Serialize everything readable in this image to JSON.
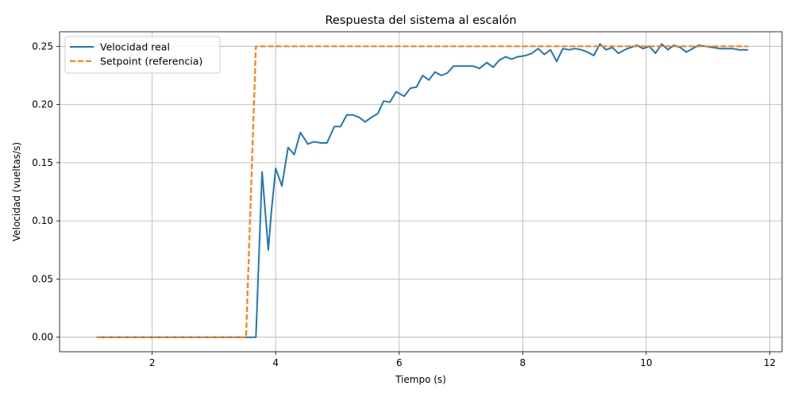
{
  "chart_data": {
    "type": "line",
    "title": "Respuesta del sistema al escalón",
    "xlabel": "Tiempo (s)",
    "ylabel": "Velocidad (vueltas/s)",
    "xlim": [
      0.5,
      12.2
    ],
    "ylim": [
      -0.0125,
      0.2625
    ],
    "x_ticks": [
      2,
      4,
      6,
      8,
      10,
      12
    ],
    "x_tick_labels": [
      "2",
      "4",
      "6",
      "8",
      "10",
      "12"
    ],
    "y_ticks": [
      0,
      0.05,
      0.1,
      0.15,
      0.2,
      0.25
    ],
    "y_tick_labels": [
      "0.00",
      "0.05",
      "0.10",
      "0.15",
      "0.20",
      "0.25"
    ],
    "grid": true,
    "legend_position": "top-left",
    "series": [
      {
        "name": "Velocidad real",
        "color": "#1f77b4",
        "style": "solid",
        "x": [
          1.1,
          3.68,
          3.78,
          3.88,
          3.93,
          4.0,
          4.1,
          4.2,
          4.3,
          4.4,
          4.52,
          4.62,
          4.73,
          4.83,
          4.95,
          5.05,
          5.15,
          5.25,
          5.35,
          5.45,
          5.55,
          5.65,
          5.75,
          5.85,
          5.95,
          6.08,
          6.18,
          6.28,
          6.38,
          6.48,
          6.58,
          6.68,
          6.78,
          6.88,
          6.98,
          7.08,
          7.2,
          7.3,
          7.42,
          7.52,
          7.62,
          7.72,
          7.82,
          7.92,
          8.05,
          8.15,
          8.25,
          8.35,
          8.45,
          8.55,
          8.65,
          8.75,
          8.85,
          8.95,
          9.05,
          9.15,
          9.25,
          9.35,
          9.45,
          9.55,
          9.65,
          9.75,
          9.85,
          9.95,
          10.05,
          10.15,
          10.25,
          10.35,
          10.45,
          10.55,
          10.65,
          10.75,
          10.85,
          10.95,
          11.08,
          11.2,
          11.3,
          11.4,
          11.5,
          11.65
        ],
        "y": [
          0.0,
          0.0,
          0.142,
          0.075,
          0.108,
          0.145,
          0.13,
          0.163,
          0.157,
          0.176,
          0.166,
          0.168,
          0.167,
          0.167,
          0.181,
          0.181,
          0.191,
          0.191,
          0.189,
          0.185,
          0.189,
          0.192,
          0.203,
          0.202,
          0.211,
          0.207,
          0.214,
          0.215,
          0.225,
          0.221,
          0.228,
          0.225,
          0.227,
          0.233,
          0.233,
          0.233,
          0.233,
          0.231,
          0.236,
          0.232,
          0.238,
          0.241,
          0.239,
          0.241,
          0.242,
          0.244,
          0.248,
          0.243,
          0.247,
          0.237,
          0.248,
          0.247,
          0.248,
          0.247,
          0.245,
          0.242,
          0.252,
          0.247,
          0.249,
          0.244,
          0.247,
          0.249,
          0.251,
          0.248,
          0.25,
          0.244,
          0.252,
          0.247,
          0.251,
          0.249,
          0.245,
          0.248,
          0.251,
          0.25,
          0.249,
          0.248,
          0.248,
          0.248,
          0.247,
          0.247
        ]
      },
      {
        "name": "Setpoint (referencia)",
        "color": "#ff7f0e",
        "style": "dashed",
        "x": [
          1.1,
          3.52,
          3.68,
          11.65
        ],
        "y": [
          0.0,
          0.0,
          0.25,
          0.25
        ]
      }
    ]
  }
}
